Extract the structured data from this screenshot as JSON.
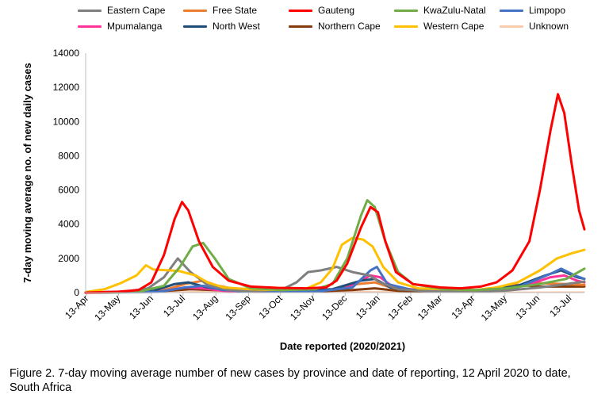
{
  "figure": {
    "caption": "Figure 2. 7-day moving average number of new cases by province and date of reporting, 12 April 2020 to date, South Africa"
  },
  "chart_data": {
    "type": "line",
    "title": "",
    "xlabel": "Date reported (2020/2021)",
    "ylabel": "7-day moving average no. of new daily cases",
    "ylim": [
      0,
      14000
    ],
    "xlim": [
      "2020-04-12",
      "2021-07-27"
    ],
    "yticks": [
      "0",
      "2000",
      "4000",
      "6000",
      "8000",
      "10000",
      "12000",
      "14000"
    ],
    "x_tick_labels": [
      {
        "date": "2020-04-13",
        "label": "13-Apr"
      },
      {
        "date": "2020-05-13",
        "label": "13-May"
      },
      {
        "date": "2020-06-13",
        "label": "13-Jun"
      },
      {
        "date": "2020-07-13",
        "label": "13-Jul"
      },
      {
        "date": "2020-08-13",
        "label": "13-Aug"
      },
      {
        "date": "2020-09-13",
        "label": "13-Sep"
      },
      {
        "date": "2020-10-13",
        "label": "13-Oct"
      },
      {
        "date": "2020-11-13",
        "label": "13-Nov"
      },
      {
        "date": "2020-12-13",
        "label": "13-Dec"
      },
      {
        "date": "2021-01-13",
        "label": "13-Jan"
      },
      {
        "date": "2021-02-13",
        "label": "13-Feb"
      },
      {
        "date": "2021-03-13",
        "label": "13-Mar"
      },
      {
        "date": "2021-04-13",
        "label": "13-Apr"
      },
      {
        "date": "2021-05-13",
        "label": "13-May"
      },
      {
        "date": "2021-06-13",
        "label": "13-Jun"
      },
      {
        "date": "2021-07-13",
        "label": "13-Jul"
      }
    ],
    "grid": false,
    "legend_position": "top",
    "series": [
      {
        "name": "Eastern Cape",
        "color": "#7f7f7f",
        "points": [
          [
            "2020-04-12",
            0
          ],
          [
            "2020-05-15",
            20
          ],
          [
            "2020-06-10",
            250
          ],
          [
            "2020-06-25",
            900
          ],
          [
            "2020-07-08",
            2000
          ],
          [
            "2020-07-20",
            1200
          ],
          [
            "2020-08-05",
            450
          ],
          [
            "2020-08-25",
            150
          ],
          [
            "2020-09-20",
            80
          ],
          [
            "2020-10-15",
            200
          ],
          [
            "2020-10-28",
            600
          ],
          [
            "2020-11-08",
            1200
          ],
          [
            "2020-11-20",
            1300
          ],
          [
            "2020-12-05",
            1500
          ],
          [
            "2020-12-20",
            1200
          ],
          [
            "2021-01-05",
            1000
          ],
          [
            "2021-01-15",
            600
          ],
          [
            "2021-02-01",
            200
          ],
          [
            "2021-03-01",
            80
          ],
          [
            "2021-04-15",
            70
          ],
          [
            "2021-05-15",
            120
          ],
          [
            "2021-06-15",
            300
          ],
          [
            "2021-07-10",
            500
          ],
          [
            "2021-07-27",
            650
          ]
        ]
      },
      {
        "name": "Free State",
        "color": "#ed7d31",
        "points": [
          [
            "2020-04-12",
            0
          ],
          [
            "2020-06-20",
            60
          ],
          [
            "2020-07-15",
            500
          ],
          [
            "2020-08-01",
            700
          ],
          [
            "2020-08-15",
            400
          ],
          [
            "2020-09-10",
            100
          ],
          [
            "2020-10-10",
            180
          ],
          [
            "2020-11-01",
            150
          ],
          [
            "2020-12-01",
            200
          ],
          [
            "2020-12-25",
            500
          ],
          [
            "2021-01-10",
            600
          ],
          [
            "2021-01-25",
            300
          ],
          [
            "2021-03-01",
            100
          ],
          [
            "2021-04-20",
            150
          ],
          [
            "2021-05-20",
            400
          ],
          [
            "2021-06-15",
            550
          ],
          [
            "2021-07-10",
            500
          ],
          [
            "2021-07-27",
            450
          ]
        ]
      },
      {
        "name": "Gauteng",
        "color": "#ff0000",
        "points": [
          [
            "2020-04-12",
            0
          ],
          [
            "2020-05-13",
            50
          ],
          [
            "2020-06-01",
            150
          ],
          [
            "2020-06-13",
            600
          ],
          [
            "2020-06-25",
            2200
          ],
          [
            "2020-07-05",
            4300
          ],
          [
            "2020-07-12",
            5300
          ],
          [
            "2020-07-18",
            4800
          ],
          [
            "2020-07-28",
            3000
          ],
          [
            "2020-08-10",
            1500
          ],
          [
            "2020-08-25",
            700
          ],
          [
            "2020-09-15",
            350
          ],
          [
            "2020-10-10",
            280
          ],
          [
            "2020-11-05",
            250
          ],
          [
            "2020-11-25",
            300
          ],
          [
            "2020-12-05",
            700
          ],
          [
            "2020-12-15",
            1700
          ],
          [
            "2020-12-28",
            3800
          ],
          [
            "2021-01-06",
            5000
          ],
          [
            "2021-01-13",
            4700
          ],
          [
            "2021-01-20",
            3000
          ],
          [
            "2021-01-30",
            1200
          ],
          [
            "2021-02-15",
            500
          ],
          [
            "2021-03-13",
            300
          ],
          [
            "2021-04-01",
            250
          ],
          [
            "2021-04-20",
            350
          ],
          [
            "2021-05-05",
            600
          ],
          [
            "2021-05-20",
            1300
          ],
          [
            "2021-06-05",
            3000
          ],
          [
            "2021-06-15",
            6000
          ],
          [
            "2021-06-25",
            9500
          ],
          [
            "2021-07-02",
            11600
          ],
          [
            "2021-07-08",
            10500
          ],
          [
            "2021-07-15",
            7500
          ],
          [
            "2021-07-22",
            4800
          ],
          [
            "2021-07-27",
            3700
          ]
        ]
      },
      {
        "name": "KwaZulu-Natal",
        "color": "#70ad47",
        "points": [
          [
            "2020-04-12",
            0
          ],
          [
            "2020-06-01",
            50
          ],
          [
            "2020-06-25",
            400
          ],
          [
            "2020-07-10",
            1500
          ],
          [
            "2020-07-22",
            2700
          ],
          [
            "2020-08-01",
            2900
          ],
          [
            "2020-08-12",
            2000
          ],
          [
            "2020-08-25",
            800
          ],
          [
            "2020-09-15",
            250
          ],
          [
            "2020-10-15",
            150
          ],
          [
            "2020-11-15",
            200
          ],
          [
            "2020-12-01",
            500
          ],
          [
            "2020-12-15",
            2000
          ],
          [
            "2020-12-28",
            4500
          ],
          [
            "2021-01-03",
            5400
          ],
          [
            "2021-01-10",
            5000
          ],
          [
            "2021-01-20",
            3000
          ],
          [
            "2021-02-01",
            1200
          ],
          [
            "2021-02-15",
            500
          ],
          [
            "2021-03-15",
            200
          ],
          [
            "2021-04-15",
            150
          ],
          [
            "2021-05-15",
            250
          ],
          [
            "2021-06-15",
            500
          ],
          [
            "2021-07-10",
            800
          ],
          [
            "2021-07-27",
            1400
          ]
        ]
      },
      {
        "name": "Limpopo",
        "color": "#4472c4",
        "points": [
          [
            "2020-04-12",
            0
          ],
          [
            "2020-06-20",
            40
          ],
          [
            "2020-07-15",
            300
          ],
          [
            "2020-08-01",
            400
          ],
          [
            "2020-08-20",
            150
          ],
          [
            "2020-09-20",
            50
          ],
          [
            "2020-11-15",
            60
          ],
          [
            "2020-12-20",
            300
          ],
          [
            "2021-01-06",
            1300
          ],
          [
            "2021-01-12",
            1500
          ],
          [
            "2021-01-22",
            500
          ],
          [
            "2021-02-15",
            150
          ],
          [
            "2021-04-15",
            80
          ],
          [
            "2021-05-25",
            300
          ],
          [
            "2021-06-25",
            1100
          ],
          [
            "2021-07-05",
            1400
          ],
          [
            "2021-07-18",
            1000
          ],
          [
            "2021-07-27",
            800
          ]
        ]
      },
      {
        "name": "Mpumalanga",
        "color": "#ff3399",
        "points": [
          [
            "2020-04-12",
            0
          ],
          [
            "2020-06-20",
            50
          ],
          [
            "2020-07-15",
            300
          ],
          [
            "2020-08-01",
            250
          ],
          [
            "2020-08-20",
            100
          ],
          [
            "2020-09-20",
            40
          ],
          [
            "2020-11-15",
            60
          ],
          [
            "2020-12-15",
            300
          ],
          [
            "2021-01-06",
            1000
          ],
          [
            "2021-01-15",
            900
          ],
          [
            "2021-01-28",
            300
          ],
          [
            "2021-03-01",
            80
          ],
          [
            "2021-05-01",
            100
          ],
          [
            "2021-06-01",
            400
          ],
          [
            "2021-06-25",
            900
          ],
          [
            "2021-07-08",
            1000
          ],
          [
            "2021-07-20",
            700
          ],
          [
            "2021-07-27",
            600
          ]
        ]
      },
      {
        "name": "North West",
        "color": "#1f4e79",
        "points": [
          [
            "2020-04-12",
            0
          ],
          [
            "2020-06-15",
            100
          ],
          [
            "2020-07-05",
            500
          ],
          [
            "2020-07-18",
            600
          ],
          [
            "2020-08-05",
            300
          ],
          [
            "2020-09-05",
            80
          ],
          [
            "2020-10-15",
            80
          ],
          [
            "2020-12-01",
            200
          ],
          [
            "2020-12-28",
            700
          ],
          [
            "2021-01-10",
            800
          ],
          [
            "2021-01-25",
            300
          ],
          [
            "2021-03-01",
            80
          ],
          [
            "2021-04-20",
            100
          ],
          [
            "2021-05-25",
            400
          ],
          [
            "2021-06-20",
            1000
          ],
          [
            "2021-07-05",
            1300
          ],
          [
            "2021-07-20",
            900
          ],
          [
            "2021-07-27",
            800
          ]
        ]
      },
      {
        "name": "Northern Cape",
        "color": "#843c0c",
        "points": [
          [
            "2020-04-12",
            0
          ],
          [
            "2020-06-15",
            50
          ],
          [
            "2020-07-20",
            200
          ],
          [
            "2020-08-10",
            150
          ],
          [
            "2020-09-15",
            60
          ],
          [
            "2020-10-20",
            60
          ],
          [
            "2020-11-20",
            80
          ],
          [
            "2020-12-20",
            150
          ],
          [
            "2021-01-10",
            250
          ],
          [
            "2021-02-01",
            100
          ],
          [
            "2021-03-15",
            60
          ],
          [
            "2021-04-20",
            120
          ],
          [
            "2021-05-10",
            350
          ],
          [
            "2021-05-25",
            450
          ],
          [
            "2021-06-15",
            350
          ],
          [
            "2021-07-05",
            350
          ],
          [
            "2021-07-27",
            350
          ]
        ]
      },
      {
        "name": "Western Cape",
        "color": "#ffc000",
        "points": [
          [
            "2020-04-12",
            30
          ],
          [
            "2020-04-30",
            200
          ],
          [
            "2020-05-15",
            550
          ],
          [
            "2020-05-30",
            1000
          ],
          [
            "2020-06-08",
            1600
          ],
          [
            "2020-06-15",
            1350
          ],
          [
            "2020-07-01",
            1300
          ],
          [
            "2020-07-10",
            1250
          ],
          [
            "2020-07-25",
            1000
          ],
          [
            "2020-08-05",
            600
          ],
          [
            "2020-08-20",
            300
          ],
          [
            "2020-09-15",
            200
          ],
          [
            "2020-10-13",
            150
          ],
          [
            "2020-11-05",
            200
          ],
          [
            "2020-11-20",
            600
          ],
          [
            "2020-12-01",
            1400
          ],
          [
            "2020-12-10",
            2800
          ],
          [
            "2020-12-20",
            3200
          ],
          [
            "2020-12-30",
            3100
          ],
          [
            "2021-01-08",
            2700
          ],
          [
            "2021-01-18",
            1500
          ],
          [
            "2021-02-01",
            600
          ],
          [
            "2021-02-20",
            250
          ],
          [
            "2021-03-15",
            200
          ],
          [
            "2021-04-15",
            150
          ],
          [
            "2021-05-05",
            300
          ],
          [
            "2021-05-25",
            600
          ],
          [
            "2021-06-15",
            1300
          ],
          [
            "2021-07-01",
            2000
          ],
          [
            "2021-07-15",
            2300
          ],
          [
            "2021-07-27",
            2500
          ]
        ]
      },
      {
        "name": "Unknown",
        "color": "#f8cbad",
        "points": [
          [
            "2020-04-12",
            0
          ],
          [
            "2020-07-01",
            40
          ],
          [
            "2020-08-01",
            60
          ],
          [
            "2020-10-01",
            20
          ],
          [
            "2021-01-01",
            60
          ],
          [
            "2021-04-01",
            20
          ],
          [
            "2021-07-27",
            40
          ]
        ]
      }
    ]
  }
}
